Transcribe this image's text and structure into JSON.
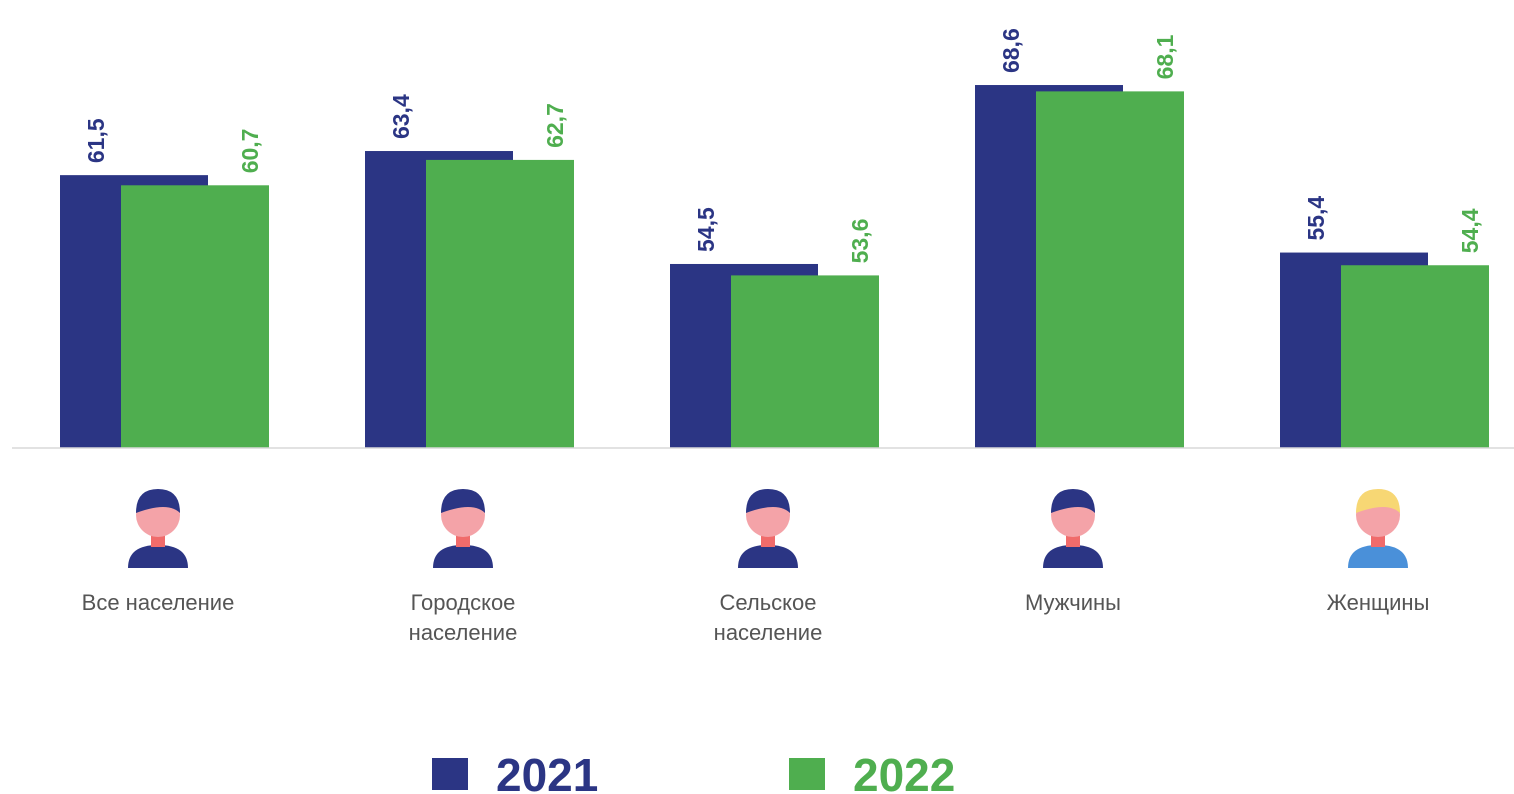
{
  "chart_data": {
    "type": "bar",
    "categories": [
      "Все население",
      "Городское население",
      "Сельское население",
      "Мужчины",
      "Женщины"
    ],
    "series": [
      {
        "name": "2021",
        "color": "#2b3584",
        "values": [
          61.5,
          63.4,
          54.5,
          68.6,
          55.4
        ],
        "value_labels": [
          "61,5",
          "63,4",
          "54,5",
          "68,6",
          "55,4"
        ]
      },
      {
        "name": "2022",
        "color": "#4fae4f",
        "values": [
          60.7,
          62.7,
          53.6,
          68.1,
          54.4
        ],
        "value_labels": [
          "60,7",
          "62,7",
          "53,6",
          "68,1",
          "54,4"
        ]
      }
    ],
    "ylim": [
      40,
      75.3
    ]
  }
}
